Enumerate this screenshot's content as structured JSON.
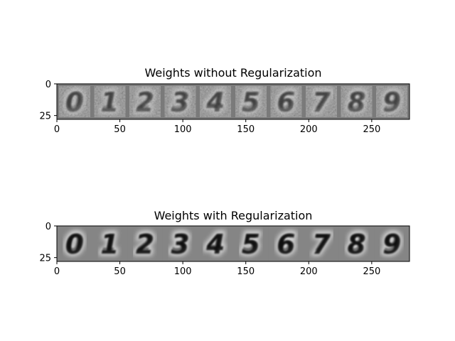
{
  "figure": {
    "background": "#ffffff"
  },
  "chart_data": [
    {
      "type": "heatmap",
      "title": "Weights without Regularization",
      "colormap": "gray",
      "image_shape": [
        28,
        280
      ],
      "xlim": [
        0,
        280
      ],
      "ylim": [
        28,
        0
      ],
      "xticks": [
        0,
        50,
        100,
        150,
        200,
        250
      ],
      "yticks": [
        0,
        25
      ],
      "panels": [
        {
          "digit": 0,
          "glyph": "0",
          "ink_strength": 0.6,
          "noise": 0.9
        },
        {
          "digit": 1,
          "glyph": "1",
          "ink_strength": 0.6,
          "noise": 0.9
        },
        {
          "digit": 2,
          "glyph": "2",
          "ink_strength": 0.6,
          "noise": 0.9
        },
        {
          "digit": 3,
          "glyph": "3",
          "ink_strength": 0.6,
          "noise": 0.9
        },
        {
          "digit": 4,
          "glyph": "4",
          "ink_strength": 0.6,
          "noise": 0.9
        },
        {
          "digit": 5,
          "glyph": "5",
          "ink_strength": 0.6,
          "noise": 0.9
        },
        {
          "digit": 6,
          "glyph": "6",
          "ink_strength": 0.6,
          "noise": 0.9
        },
        {
          "digit": 7,
          "glyph": "7",
          "ink_strength": 0.6,
          "noise": 0.9
        },
        {
          "digit": 8,
          "glyph": "8",
          "ink_strength": 0.6,
          "noise": 0.9
        },
        {
          "digit": 9,
          "glyph": "9",
          "ink_strength": 0.6,
          "noise": 0.9
        }
      ]
    },
    {
      "type": "heatmap",
      "title": "Weights with Regularization",
      "colormap": "gray",
      "image_shape": [
        28,
        280
      ],
      "xlim": [
        0,
        280
      ],
      "ylim": [
        28,
        0
      ],
      "xticks": [
        0,
        50,
        100,
        150,
        200,
        250
      ],
      "yticks": [
        0,
        25
      ],
      "panels": [
        {
          "digit": 0,
          "glyph": "0",
          "ink_strength": 1.0,
          "noise": 0.0
        },
        {
          "digit": 1,
          "glyph": "1",
          "ink_strength": 1.0,
          "noise": 0.0
        },
        {
          "digit": 2,
          "glyph": "2",
          "ink_strength": 1.0,
          "noise": 0.0
        },
        {
          "digit": 3,
          "glyph": "3",
          "ink_strength": 1.0,
          "noise": 0.0
        },
        {
          "digit": 4,
          "glyph": "4",
          "ink_strength": 1.0,
          "noise": 0.0
        },
        {
          "digit": 5,
          "glyph": "5",
          "ink_strength": 1.0,
          "noise": 0.0
        },
        {
          "digit": 6,
          "glyph": "6",
          "ink_strength": 1.0,
          "noise": 0.0
        },
        {
          "digit": 7,
          "glyph": "7",
          "ink_strength": 1.0,
          "noise": 0.0
        },
        {
          "digit": 8,
          "glyph": "8",
          "ink_strength": 1.0,
          "noise": 0.0
        },
        {
          "digit": 9,
          "glyph": "9",
          "ink_strength": 1.0,
          "noise": 0.0
        }
      ]
    }
  ]
}
